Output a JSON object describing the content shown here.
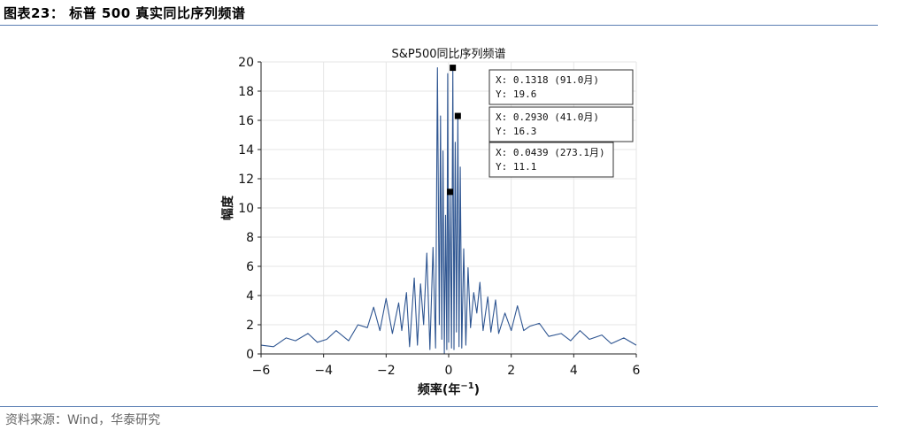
{
  "header": {
    "title": "图表23：  标普 500 真实同比序列频谱"
  },
  "source": {
    "text": "资料来源：Wind，华泰研究"
  },
  "colors": {
    "line": "#2e5591",
    "rule": "#5a7eb3",
    "grid": "#e6e6e6"
  },
  "chart_data": {
    "type": "line",
    "title": "S&P500同比序列频谱",
    "xlabel": "频率(年",
    "xlabel_sup": "−1",
    "xlabel_close": ")",
    "ylabel": "幅度",
    "xlim": [
      -6,
      6
    ],
    "ylim": [
      0,
      20
    ],
    "grid": true,
    "xticks": [
      -6,
      -4,
      -2,
      0,
      2,
      4,
      6
    ],
    "xtick_labels": [
      "−6",
      "−4",
      "−2",
      "0",
      "2",
      "4",
      "6"
    ],
    "yticks": [
      0,
      2,
      4,
      6,
      8,
      10,
      12,
      14,
      16,
      18,
      20
    ],
    "ytick_labels": [
      "0",
      "2",
      "4",
      "6",
      "8",
      "10",
      "12",
      "14",
      "16",
      "18",
      "20"
    ],
    "series": [
      {
        "x": [
          -6.0,
          -5.6,
          -5.2,
          -4.9,
          -4.5,
          -4.2,
          -3.9,
          -3.6,
          -3.2,
          -2.9,
          -2.6,
          -2.4,
          -2.2,
          -2.0,
          -1.8,
          -1.6,
          -1.5,
          -1.35,
          -1.25,
          -1.1,
          -1.0,
          -0.9,
          -0.8,
          -0.7,
          -0.6,
          -0.5,
          -0.42,
          -0.36,
          -0.3,
          -0.26,
          -0.22,
          -0.18,
          -0.14,
          -0.1,
          -0.06,
          -0.03,
          0.0,
          0.0439,
          0.09,
          0.1318,
          0.17,
          0.21,
          0.25,
          0.293,
          0.33,
          0.37,
          0.42,
          0.48,
          0.55,
          0.62,
          0.7,
          0.8,
          0.9,
          1.0,
          1.1,
          1.25,
          1.35,
          1.5,
          1.6,
          1.8,
          2.0,
          2.2,
          2.4,
          2.6,
          2.9,
          3.2,
          3.6,
          3.9,
          4.2,
          4.5,
          4.9,
          5.2,
          5.6,
          6.0
        ],
        "y": [
          0.6,
          0.5,
          1.1,
          0.9,
          1.4,
          0.8,
          1.0,
          1.6,
          0.9,
          2.0,
          1.8,
          3.2,
          1.6,
          3.8,
          1.4,
          3.5,
          1.6,
          4.2,
          0.5,
          5.2,
          0.6,
          4.8,
          2.0,
          6.9,
          0.3,
          7.3,
          0.4,
          19.6,
          2.0,
          16.3,
          1.0,
          13.9,
          0.0,
          9.5,
          0.3,
          19.2,
          0.8,
          11.1,
          0.4,
          19.6,
          0.3,
          14.5,
          1.5,
          16.3,
          0.5,
          12.8,
          0.4,
          7.2,
          0.6,
          5.9,
          1.8,
          4.2,
          2.8,
          4.9,
          1.6,
          3.9,
          1.5,
          3.7,
          1.4,
          2.8,
          1.6,
          3.3,
          1.6,
          1.9,
          2.1,
          1.2,
          1.4,
          0.9,
          1.6,
          1.0,
          1.3,
          0.7,
          1.1,
          0.6
        ]
      }
    ],
    "datatips": [
      {
        "x": 0.1318,
        "y": 19.6,
        "line1": "X: 0.1318 (91.0月)",
        "line2": "Y: 19.6"
      },
      {
        "x": 0.293,
        "y": 16.3,
        "line1": "X: 0.2930 (41.0月)",
        "line2": "Y: 16.3"
      },
      {
        "x": 0.0439,
        "y": 11.1,
        "line1": "X: 0.0439 (273.1月)",
        "line2": "Y: 11.1"
      }
    ]
  }
}
